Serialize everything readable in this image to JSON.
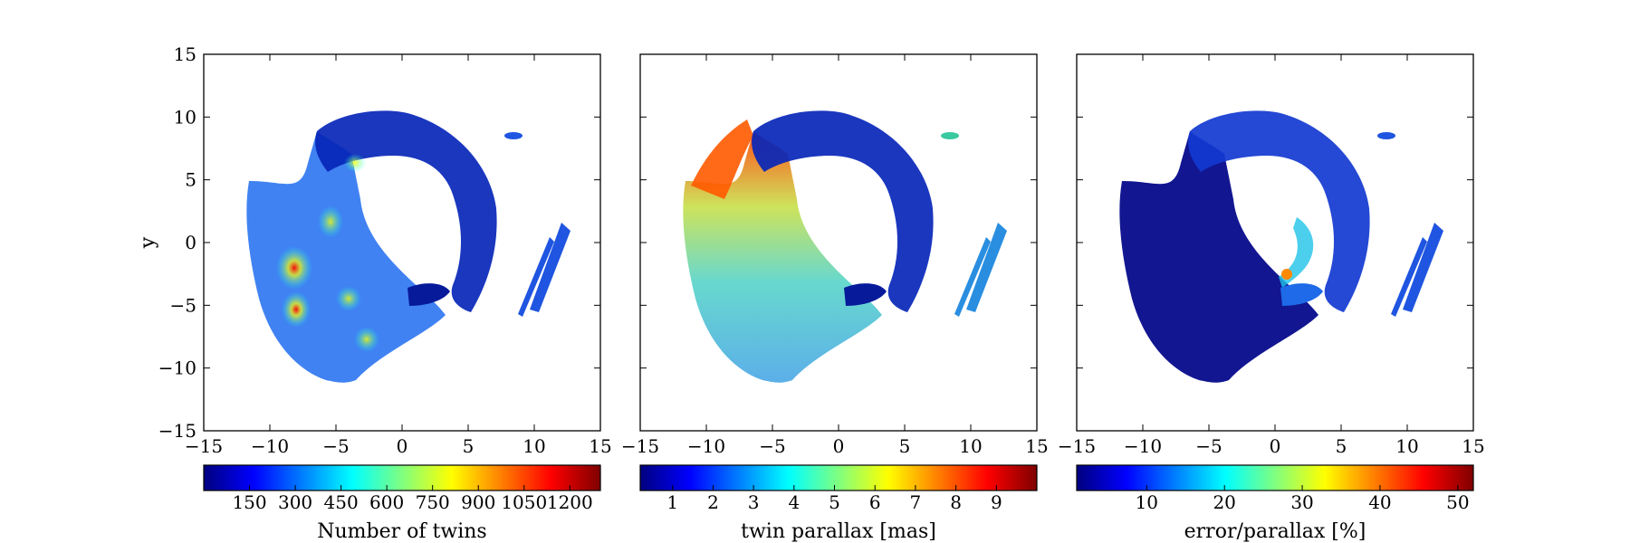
{
  "chart_data": [
    {
      "type": "heatmap",
      "ylabel": "y",
      "xlim": [
        -15,
        15
      ],
      "ylim": [
        -15,
        15
      ],
      "xticks": [
        "−15",
        "−10",
        "−5",
        "0",
        "5",
        "10",
        "15"
      ],
      "yticks": [
        "15",
        "10",
        "5",
        "0",
        "−5",
        "−10",
        "−15"
      ],
      "colorbar": {
        "label": "Number of twins",
        "ticks": [
          "150",
          "300",
          "450",
          "600",
          "750",
          "900",
          "1050",
          "1200"
        ],
        "range": [
          0,
          1300
        ]
      }
    },
    {
      "type": "heatmap",
      "xlim": [
        -15,
        15
      ],
      "ylim": [
        -15,
        15
      ],
      "xticks": [
        "−15",
        "−10",
        "−5",
        "0",
        "5",
        "10",
        "15"
      ],
      "colorbar": {
        "label": "twin parallax [mas]",
        "ticks": [
          "1",
          "2",
          "3",
          "4",
          "5",
          "6",
          "7",
          "8",
          "9"
        ],
        "range": [
          0.2,
          10
        ]
      }
    },
    {
      "type": "heatmap",
      "xlim": [
        -15,
        15
      ],
      "ylim": [
        -15,
        15
      ],
      "xticks": [
        "−15",
        "−10",
        "−5",
        "0",
        "5",
        "10",
        "15"
      ],
      "colorbar": {
        "label": "error/parallax [%]",
        "ticks": [
          "10",
          "20",
          "30",
          "40",
          "50"
        ],
        "range": [
          1,
          52
        ]
      }
    }
  ],
  "colormap": "jet"
}
